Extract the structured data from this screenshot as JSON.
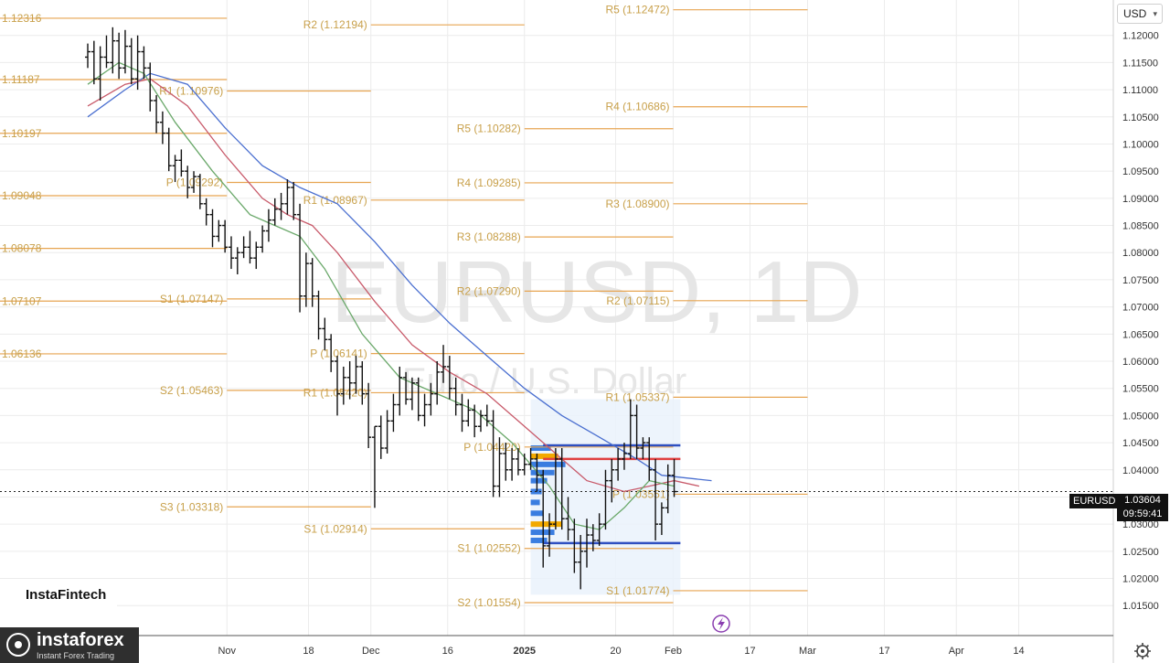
{
  "currency": {
    "label": "USD",
    "options_icon": "chevron-down-icon"
  },
  "watermark": {
    "title": "EURUSD, 1D",
    "subtitle": "Euro / U.S. Dollar"
  },
  "ticker": {
    "symbol": "EURUSD",
    "price": "1.03604",
    "countdown": "09:59:41"
  },
  "brand": {
    "inline": "InstaFintech",
    "name": "instaforex",
    "tagline": "Instant Forex Trading"
  },
  "chart_data": {
    "type": "candlestick",
    "title": "EURUSD, 1D",
    "ylim": [
      1.0115,
      1.1245
    ],
    "y_ticks": [
      "1.12000",
      "1.11500",
      "1.11000",
      "1.10500",
      "1.10000",
      "1.09500",
      "1.09000",
      "1.08500",
      "1.08000",
      "1.07500",
      "1.07000",
      "1.06500",
      "1.06000",
      "1.05500",
      "1.05000",
      "1.04500",
      "1.04000",
      "1.03500",
      "1.03000",
      "1.02500",
      "1.02000",
      "1.01500"
    ],
    "x_ticks": [
      {
        "label": "Nov",
        "day": 29
      },
      {
        "label": "18",
        "day": 46
      },
      {
        "label": "Dec",
        "day": 59
      },
      {
        "label": "16",
        "day": 75
      },
      {
        "label": "2025",
        "day": 91,
        "bold": true
      },
      {
        "label": "20",
        "day": 110
      },
      {
        "label": "Feb",
        "day": 122
      },
      {
        "label": "17",
        "day": 138
      },
      {
        "label": "Mar",
        "day": 150
      },
      {
        "label": "17",
        "day": 166
      },
      {
        "label": "Apr",
        "day": 181
      },
      {
        "label": "14",
        "day": 194
      }
    ],
    "pivots": [
      {
        "label": "1.12316",
        "value": 1.12316,
        "x0": 0,
        "x1": 29
      },
      {
        "label": "1.11187",
        "value": 1.11187,
        "x0": 0,
        "x1": 29
      },
      {
        "label": "1.10197",
        "value": 1.10197,
        "x0": 0,
        "x1": 29
      },
      {
        "label": "1.09048",
        "value": 1.09048,
        "x0": 0,
        "x1": 29
      },
      {
        "label": "1.08078",
        "value": 1.08078,
        "x0": 0,
        "x1": 29
      },
      {
        "label": "1.07107",
        "value": 1.07107,
        "x0": 0,
        "x1": 29
      },
      {
        "label": "1.06136",
        "value": 1.06136,
        "x0": 0,
        "x1": 29
      },
      {
        "label": "R2 (1.12194)",
        "value": 1.12194,
        "x0": 59,
        "x1": 91
      },
      {
        "label": "R1 (1.10976)",
        "value": 1.10976,
        "x0": 29,
        "x1": 59
      },
      {
        "label": "P (1.09292)",
        "value": 1.09292,
        "x0": 29,
        "x1": 59
      },
      {
        "label": "R1 (1.08967)",
        "value": 1.08967,
        "x0": 59,
        "x1": 91
      },
      {
        "label": "S1 (1.07147)",
        "value": 1.07147,
        "x0": 29,
        "x1": 59
      },
      {
        "label": "P (1.06141)",
        "value": 1.06141,
        "x0": 59,
        "x1": 91
      },
      {
        "label": "S2 (1.05463)",
        "value": 1.05463,
        "x0": 29,
        "x1": 59
      },
      {
        "label": "S3 (1.03318)",
        "value": 1.03318,
        "x0": 29,
        "x1": 59
      },
      {
        "label": "S1 (1.02914)",
        "value": 1.02914,
        "x0": 59,
        "x1": 91
      },
      {
        "label": "R5 (1.10282)",
        "value": 1.10282,
        "x0": 91,
        "x1": 122
      },
      {
        "label": "R4 (1.09285)",
        "value": 1.09285,
        "x0": 91,
        "x1": 122
      },
      {
        "label": "R3 (1.08288)",
        "value": 1.08288,
        "x0": 91,
        "x1": 122
      },
      {
        "label": "R2 (1.07290)",
        "value": 1.0729,
        "x0": 91,
        "x1": 122
      },
      {
        "label": "R1 (1.05420)",
        "value": 1.0542,
        "x0": 59,
        "x1": 91
      },
      {
        "label": "P (1.04420)",
        "value": 1.0442,
        "x0": 91,
        "x1": 122
      },
      {
        "label": "S1 (1.02552)",
        "value": 1.02552,
        "x0": 91,
        "x1": 122
      },
      {
        "label": "S2 (1.01554)",
        "value": 1.01554,
        "x0": 91,
        "x1": 122
      },
      {
        "label": "R5 (1.12472)",
        "value": 1.12472,
        "x0": 122,
        "x1": 150
      },
      {
        "label": "R4 (1.10686)",
        "value": 1.10686,
        "x0": 122,
        "x1": 150
      },
      {
        "label": "R3 (1.08900)",
        "value": 1.089,
        "x0": 122,
        "x1": 150
      },
      {
        "label": "R2 (1.07115)",
        "value": 1.07115,
        "x0": 122,
        "x1": 150
      },
      {
        "label": "R1 (1.05337)",
        "value": 1.05337,
        "x0": 122,
        "x1": 150
      },
      {
        "label": "P (1.03551)",
        "value": 1.03551,
        "x0": 122,
        "x1": 150
      },
      {
        "label": "S1 (1.01774)",
        "value": 1.01774,
        "x0": 122,
        "x1": 150
      }
    ],
    "candles": [
      [
        0,
        1.116,
        1.1185,
        1.114,
        1.117
      ],
      [
        1,
        1.117,
        1.119,
        1.111,
        1.112
      ],
      [
        2,
        1.112,
        1.118,
        1.108,
        1.116
      ],
      [
        3,
        1.116,
        1.12,
        1.114,
        1.115
      ],
      [
        4,
        1.115,
        1.1215,
        1.113,
        1.119
      ],
      [
        5,
        1.119,
        1.1205,
        1.112,
        1.114
      ],
      [
        6,
        1.114,
        1.121,
        1.113,
        1.118
      ],
      [
        7,
        1.118,
        1.1195,
        1.111,
        1.112
      ],
      [
        8,
        1.112,
        1.12,
        1.11,
        1.117
      ],
      [
        9,
        1.117,
        1.118,
        1.112,
        1.114
      ],
      [
        10,
        1.114,
        1.115,
        1.106,
        1.108
      ],
      [
        11,
        1.108,
        1.109,
        1.102,
        1.104
      ],
      [
        12,
        1.104,
        1.106,
        1.1,
        1.102
      ],
      [
        13,
        1.102,
        1.103,
        1.095,
        1.096
      ],
      [
        14,
        1.096,
        1.098,
        1.093,
        1.097
      ],
      [
        15,
        1.097,
        1.099,
        1.094,
        1.095
      ],
      [
        16,
        1.095,
        1.096,
        1.09,
        1.092
      ],
      [
        17,
        1.092,
        1.095,
        1.091,
        1.094
      ],
      [
        18,
        1.094,
        1.0945,
        1.088,
        1.089
      ],
      [
        19,
        1.089,
        1.09,
        1.085,
        1.087
      ],
      [
        20,
        1.087,
        1.088,
        1.081,
        1.083
      ],
      [
        21,
        1.083,
        1.086,
        1.082,
        1.085
      ],
      [
        22,
        1.085,
        1.086,
        1.08,
        1.081
      ],
      [
        23,
        1.081,
        1.083,
        1.077,
        1.079
      ],
      [
        24,
        1.079,
        1.081,
        1.076,
        1.08
      ],
      [
        25,
        1.08,
        1.083,
        1.079,
        1.081
      ],
      [
        26,
        1.081,
        1.084,
        1.078,
        1.079
      ],
      [
        27,
        1.079,
        1.082,
        1.077,
        1.081
      ],
      [
        28,
        1.081,
        1.085,
        1.08,
        1.084
      ],
      [
        29,
        1.084,
        1.088,
        1.082,
        1.086
      ],
      [
        30,
        1.086,
        1.09,
        1.085,
        1.088
      ],
      [
        31,
        1.088,
        1.091,
        1.086,
        1.089
      ],
      [
        32,
        1.089,
        1.0935,
        1.087,
        1.092
      ],
      [
        33,
        1.092,
        1.093,
        1.086,
        1.087
      ],
      [
        34,
        1.087,
        1.089,
        1.069,
        1.072
      ],
      [
        35,
        1.072,
        1.08,
        1.07,
        1.078
      ],
      [
        36,
        1.078,
        1.079,
        1.07,
        1.072
      ],
      [
        37,
        1.072,
        1.073,
        1.064,
        1.066
      ],
      [
        38,
        1.066,
        1.068,
        1.062,
        1.064
      ],
      [
        39,
        1.064,
        1.065,
        1.058,
        1.06
      ],
      [
        40,
        1.06,
        1.061,
        1.05,
        1.054
      ],
      [
        41,
        1.054,
        1.059,
        1.052,
        1.057
      ],
      [
        42,
        1.057,
        1.06,
        1.053,
        1.056
      ],
      [
        43,
        1.056,
        1.061,
        1.054,
        1.059
      ],
      [
        44,
        1.059,
        1.06,
        1.052,
        1.054
      ],
      [
        45,
        1.054,
        1.056,
        1.044,
        1.046
      ],
      [
        46,
        1.046,
        1.048,
        1.033,
        1.048
      ],
      [
        47,
        1.048,
        1.05,
        1.042,
        1.044
      ],
      [
        48,
        1.044,
        1.051,
        1.043,
        1.049
      ],
      [
        49,
        1.049,
        1.054,
        1.047,
        1.052
      ],
      [
        50,
        1.052,
        1.059,
        1.05,
        1.057
      ],
      [
        51,
        1.057,
        1.058,
        1.052,
        1.053
      ],
      [
        52,
        1.053,
        1.057,
        1.051,
        1.056
      ],
      [
        53,
        1.056,
        1.057,
        1.049,
        1.05
      ],
      [
        54,
        1.05,
        1.054,
        1.048,
        1.052
      ],
      [
        55,
        1.052,
        1.056,
        1.05,
        1.054
      ],
      [
        56,
        1.054,
        1.06,
        1.052,
        1.058
      ],
      [
        57,
        1.058,
        1.063,
        1.056,
        1.059
      ],
      [
        58,
        1.059,
        1.061,
        1.053,
        1.055
      ],
      [
        59,
        1.055,
        1.057,
        1.05,
        1.052
      ],
      [
        60,
        1.052,
        1.054,
        1.047,
        1.049
      ],
      [
        61,
        1.049,
        1.053,
        1.048,
        1.051
      ],
      [
        62,
        1.051,
        1.052,
        1.046,
        1.048
      ],
      [
        63,
        1.048,
        1.051,
        1.047,
        1.05
      ],
      [
        64,
        1.05,
        1.052,
        1.048,
        1.049
      ],
      [
        65,
        1.049,
        1.051,
        1.035,
        1.037
      ],
      [
        66,
        1.037,
        1.046,
        1.035,
        1.043
      ],
      [
        67,
        1.043,
        1.045,
        1.038,
        1.04
      ],
      [
        68,
        1.04,
        1.044,
        1.038,
        1.042
      ],
      [
        69,
        1.042,
        1.044,
        1.039,
        1.04
      ],
      [
        70,
        1.04,
        1.043,
        1.039,
        1.041
      ],
      [
        71,
        1.041,
        1.044,
        1.04,
        1.042
      ],
      [
        72,
        1.042,
        1.043,
        1.036,
        1.039
      ],
      [
        73,
        1.039,
        1.04,
        1.022,
        1.026
      ],
      [
        74,
        1.026,
        1.032,
        1.024,
        1.03
      ],
      [
        75,
        1.03,
        1.044,
        1.029,
        1.042
      ],
      [
        76,
        1.042,
        1.044,
        1.029,
        1.031
      ],
      [
        77,
        1.031,
        1.035,
        1.027,
        1.029
      ],
      [
        78,
        1.029,
        1.031,
        1.021,
        1.023
      ],
      [
        79,
        1.023,
        1.028,
        1.018,
        1.025
      ],
      [
        80,
        1.025,
        1.031,
        1.022,
        1.028
      ],
      [
        81,
        1.028,
        1.03,
        1.025,
        1.027
      ],
      [
        82,
        1.027,
        1.032,
        1.026,
        1.03
      ],
      [
        83,
        1.03,
        1.04,
        1.029,
        1.038
      ],
      [
        84,
        1.038,
        1.042,
        1.034,
        1.04
      ],
      [
        85,
        1.04,
        1.044,
        1.038,
        1.042
      ],
      [
        86,
        1.042,
        1.045,
        1.04,
        1.043
      ],
      [
        87,
        1.043,
        1.053,
        1.042,
        1.05
      ],
      [
        88,
        1.05,
        1.052,
        1.042,
        1.044
      ],
      [
        89,
        1.044,
        1.046,
        1.042,
        1.045
      ],
      [
        90,
        1.045,
        1.046,
        1.038,
        1.04
      ],
      [
        91,
        1.04,
        1.042,
        1.027,
        1.03
      ],
      [
        92,
        1.03,
        1.034,
        1.028,
        1.033
      ],
      [
        93,
        1.033,
        1.041,
        1.032,
        1.039
      ],
      [
        94,
        1.039,
        1.042,
        1.035,
        1.036
      ]
    ],
    "series": [
      {
        "name": "",
        "color": "#4a6fd0",
        "points": [
          [
            0,
            1.105
          ],
          [
            6,
            1.11
          ],
          [
            10,
            1.113
          ],
          [
            16,
            1.111
          ],
          [
            22,
            1.103
          ],
          [
            28,
            1.096
          ],
          [
            34,
            1.092
          ],
          [
            40,
            1.089
          ],
          [
            46,
            1.082
          ],
          [
            52,
            1.074
          ],
          [
            58,
            1.067
          ],
          [
            64,
            1.061
          ],
          [
            70,
            1.055
          ],
          [
            76,
            1.05
          ],
          [
            82,
            1.046
          ],
          [
            88,
            1.042
          ],
          [
            92,
            1.039
          ],
          [
            96,
            1.0385
          ],
          [
            100,
            1.038
          ]
        ]
      },
      {
        "name": "",
        "color": "#c85a6a",
        "points": [
          [
            0,
            1.107
          ],
          [
            6,
            1.111
          ],
          [
            10,
            1.112
          ],
          [
            16,
            1.107
          ],
          [
            22,
            1.098
          ],
          [
            28,
            1.09
          ],
          [
            32,
            1.087
          ],
          [
            36,
            1.085
          ],
          [
            40,
            1.08
          ],
          [
            46,
            1.071
          ],
          [
            52,
            1.063
          ],
          [
            58,
            1.058
          ],
          [
            64,
            1.054
          ],
          [
            70,
            1.048
          ],
          [
            76,
            1.042
          ],
          [
            80,
            1.038
          ],
          [
            86,
            1.036
          ],
          [
            90,
            1.037
          ],
          [
            94,
            1.038
          ],
          [
            98,
            1.037
          ]
        ]
      },
      {
        "name": "",
        "color": "#6aa86a",
        "points": [
          [
            0,
            1.111
          ],
          [
            5,
            1.115
          ],
          [
            9,
            1.113
          ],
          [
            14,
            1.104
          ],
          [
            20,
            1.095
          ],
          [
            26,
            1.087
          ],
          [
            30,
            1.085
          ],
          [
            34,
            1.083
          ],
          [
            38,
            1.077
          ],
          [
            44,
            1.065
          ],
          [
            50,
            1.057
          ],
          [
            56,
            1.054
          ],
          [
            62,
            1.051
          ],
          [
            68,
            1.045
          ],
          [
            74,
            1.037
          ],
          [
            78,
            1.03
          ],
          [
            82,
            1.029
          ],
          [
            86,
            1.033
          ],
          [
            90,
            1.038
          ],
          [
            94,
            1.037
          ]
        ]
      }
    ],
    "horizontal_lines": [
      {
        "value": 1.0445,
        "color": "#2e4fc0",
        "x0": 73,
        "x1": 95
      },
      {
        "value": 1.042,
        "color": "#e04040",
        "x0": 73,
        "x1": 95
      },
      {
        "value": 1.0265,
        "color": "#2e4fc0",
        "x0": 73,
        "x1": 95
      },
      {
        "value": 1.036,
        "color": "#222222",
        "x0": 0,
        "x1": 200,
        "dashed": true
      }
    ]
  }
}
